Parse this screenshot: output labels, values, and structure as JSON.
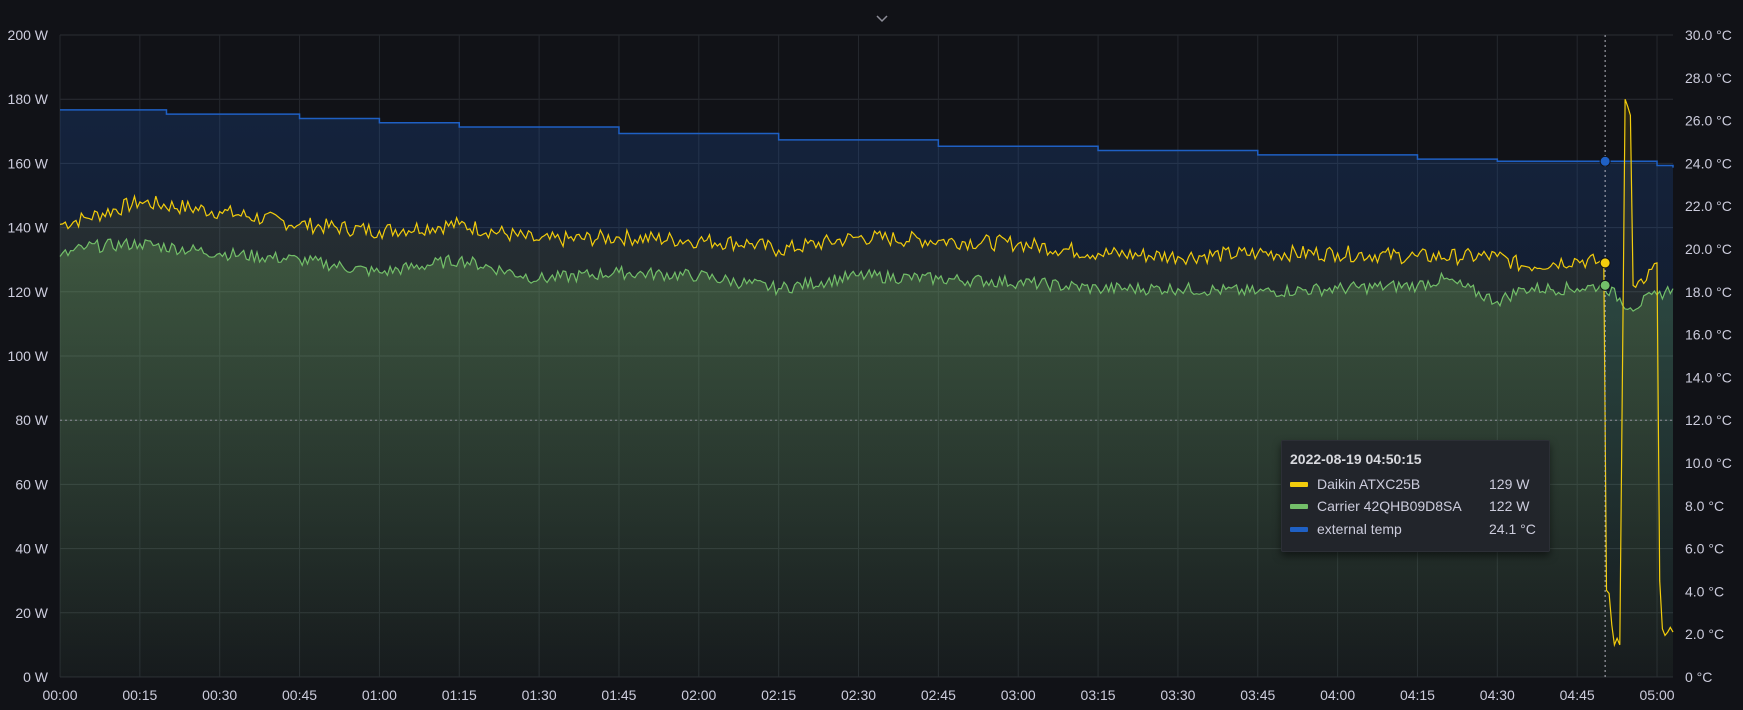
{
  "panel": {
    "collapse_icon": "chevron-down-icon"
  },
  "chart_data": {
    "type": "line",
    "x_ticks": [
      "00:00",
      "00:15",
      "00:30",
      "00:45",
      "01:00",
      "01:15",
      "01:30",
      "01:45",
      "02:00",
      "02:15",
      "02:30",
      "02:45",
      "03:00",
      "03:15",
      "03:30",
      "03:45",
      "04:00",
      "04:15",
      "04:30",
      "04:45",
      "05:00"
    ],
    "y_left": {
      "unit": "W",
      "range": [
        0,
        200
      ],
      "ticks": [
        "0 W",
        "20 W",
        "40 W",
        "60 W",
        "80 W",
        "100 W",
        "120 W",
        "140 W",
        "160 W",
        "180 W",
        "200 W"
      ]
    },
    "y_right": {
      "unit": "°C",
      "range": [
        0,
        30
      ],
      "ticks": [
        "0 °C",
        "2.0 °C",
        "4.0 °C",
        "6.0 °C",
        "8.0 °C",
        "10.0 °C",
        "12.0 °C",
        "14.0 °C",
        "16.0 °C",
        "18.0 °C",
        "20.0 °C",
        "22.0 °C",
        "24.0 °C",
        "26.0 °C",
        "28.0 °C",
        "30.0 °C"
      ]
    },
    "threshold_line": {
      "value": 12,
      "axis": "right",
      "style": "dotted"
    },
    "grid": true,
    "cursor_time": "04:50",
    "series": [
      {
        "name": "Daikin ATXC25B",
        "axis": "left",
        "color": "#f2cc0c",
        "points": [
          [
            "00:00",
            141
          ],
          [
            "00:05",
            143
          ],
          [
            "00:15",
            148
          ],
          [
            "00:30",
            145
          ],
          [
            "00:45",
            141
          ],
          [
            "01:00",
            139
          ],
          [
            "01:15",
            141
          ],
          [
            "01:30",
            136
          ],
          [
            "01:45",
            137
          ],
          [
            "02:00",
            136
          ],
          [
            "02:10",
            135
          ],
          [
            "02:15",
            133
          ],
          [
            "02:30",
            137
          ],
          [
            "02:45",
            136
          ],
          [
            "03:00",
            135
          ],
          [
            "03:15",
            132
          ],
          [
            "03:30",
            131
          ],
          [
            "03:45",
            132
          ],
          [
            "04:00",
            132
          ],
          [
            "04:15",
            131
          ],
          [
            "04:30",
            131
          ],
          [
            "04:35",
            128
          ],
          [
            "04:45",
            130
          ],
          [
            "04:50",
            129
          ],
          [
            "04:50:30",
            27
          ],
          [
            "04:51",
            26
          ],
          [
            "04:52",
            10
          ],
          [
            "04:53",
            10
          ],
          [
            "04:54",
            180
          ],
          [
            "04:55",
            175
          ],
          [
            "04:55:30",
            122
          ],
          [
            "04:57",
            124
          ],
          [
            "04:59",
            127
          ],
          [
            "05:00",
            129
          ],
          [
            "05:00:30",
            30
          ],
          [
            "05:01",
            15
          ],
          [
            "05:02",
            14
          ],
          [
            "05:03",
            14
          ]
        ]
      },
      {
        "name": "Carrier 42QHB09D8SA",
        "axis": "left",
        "color": "#73bf69",
        "points": [
          [
            "00:00",
            131
          ],
          [
            "00:05",
            134
          ],
          [
            "00:15",
            135
          ],
          [
            "00:30",
            132
          ],
          [
            "00:45",
            130
          ],
          [
            "01:00",
            126
          ],
          [
            "01:15",
            130
          ],
          [
            "01:30",
            124
          ],
          [
            "01:45",
            126
          ],
          [
            "02:00",
            125
          ],
          [
            "02:15",
            121
          ],
          [
            "02:30",
            125
          ],
          [
            "02:45",
            124
          ],
          [
            "03:00",
            123
          ],
          [
            "03:15",
            121
          ],
          [
            "03:30",
            121
          ],
          [
            "03:45",
            120
          ],
          [
            "04:00",
            121
          ],
          [
            "04:15",
            122
          ],
          [
            "04:20",
            124
          ],
          [
            "04:30",
            117
          ],
          [
            "04:35",
            121
          ],
          [
            "04:45",
            121
          ],
          [
            "04:50",
            122
          ],
          [
            "04:55",
            115
          ],
          [
            "05:00",
            119
          ],
          [
            "05:03",
            121
          ]
        ]
      },
      {
        "name": "external temp",
        "axis": "right",
        "color": "#1f60c4",
        "points": [
          [
            "00:00",
            26.5
          ],
          [
            "00:20",
            26.3
          ],
          [
            "00:45",
            26.1
          ],
          [
            "01:00",
            25.9
          ],
          [
            "01:15",
            25.7
          ],
          [
            "01:45",
            25.4
          ],
          [
            "02:15",
            25.1
          ],
          [
            "02:45",
            24.8
          ],
          [
            "03:15",
            24.6
          ],
          [
            "03:45",
            24.4
          ],
          [
            "04:15",
            24.2
          ],
          [
            "04:30",
            24.1
          ],
          [
            "04:50",
            24.1
          ],
          [
            "05:00",
            23.9
          ],
          [
            "05:03",
            23.8
          ]
        ]
      }
    ],
    "tooltip": {
      "time": "2022-08-19 04:50:15",
      "rows": [
        {
          "name": "Daikin ATXC25B",
          "value": "129 W",
          "color": "#f2cc0c"
        },
        {
          "name": "Carrier 42QHB09D8SA",
          "value": "122 W",
          "color": "#73bf69"
        },
        {
          "name": "external temp",
          "value": "24.1 °C",
          "color": "#1f60c4"
        }
      ]
    }
  }
}
